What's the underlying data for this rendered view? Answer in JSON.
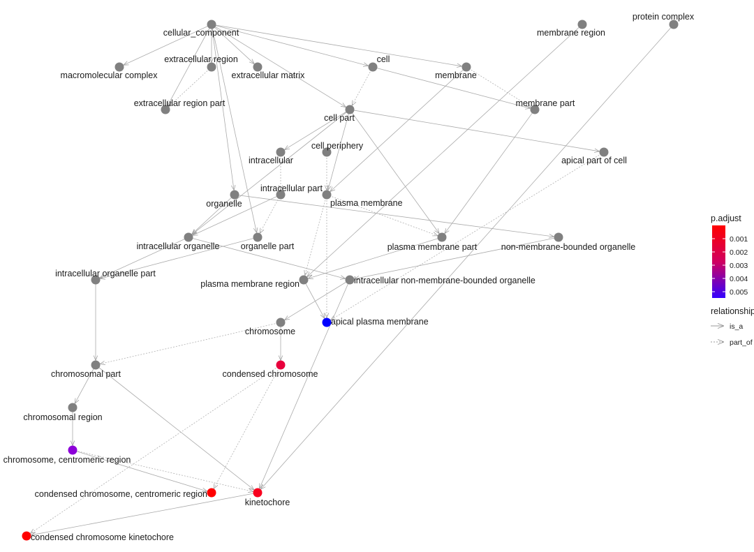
{
  "colors": {
    "default_node": "#808080",
    "edge": "#aaaaaa",
    "low": "#ff0000",
    "high": "#0000ff"
  },
  "nodes": [
    {
      "id": "cellular_component",
      "label": "cellular_component"
    },
    {
      "id": "macromolecular_complex",
      "label": "macromolecular complex"
    },
    {
      "id": "extracellular_region",
      "label": "extracellular region"
    },
    {
      "id": "extracellular_matrix",
      "label": "extracellular matrix"
    },
    {
      "id": "extracellular_region_part",
      "label": "extracellular region part"
    },
    {
      "id": "cell",
      "label": "cell"
    },
    {
      "id": "membrane",
      "label": "membrane"
    },
    {
      "id": "membrane_region",
      "label": "membrane region"
    },
    {
      "id": "protein_complex",
      "label": "protein complex"
    },
    {
      "id": "membrane_part",
      "label": "membrane part"
    },
    {
      "id": "cell_part",
      "label": "cell part"
    },
    {
      "id": "intracellular",
      "label": "intracellular"
    },
    {
      "id": "cell_periphery",
      "label": "cell periphery"
    },
    {
      "id": "apical_part_of_cell",
      "label": "apical part of cell"
    },
    {
      "id": "organelle",
      "label": "organelle"
    },
    {
      "id": "intracellular_part",
      "label": "intracellular part"
    },
    {
      "id": "plasma_membrane",
      "label": "plasma membrane"
    },
    {
      "id": "intracellular_organelle",
      "label": "intracellular organelle"
    },
    {
      "id": "organelle_part",
      "label": "organelle part"
    },
    {
      "id": "plasma_membrane_part",
      "label": "plasma membrane part"
    },
    {
      "id": "nmbo",
      "label": "non-membrane-bounded organelle"
    },
    {
      "id": "intracellular_organelle_part",
      "label": "intracellular organelle part"
    },
    {
      "id": "plasma_membrane_region",
      "label": "plasma membrane region"
    },
    {
      "id": "intracellular_nmbo",
      "label": "intracellular non-membrane-bounded organelle"
    },
    {
      "id": "chromosome",
      "label": "chromosome"
    },
    {
      "id": "apical_plasma_membrane",
      "label": "apical plasma membrane",
      "color": "#0000ff"
    },
    {
      "id": "condensed_chromosome",
      "label": "condensed chromosome",
      "color": "#e8003c"
    },
    {
      "id": "chromosomal_part",
      "label": "chromosomal part"
    },
    {
      "id": "chromosomal_region",
      "label": "chromosomal region"
    },
    {
      "id": "centromeric_region",
      "label": "chromosome, centromeric region",
      "color": "#8c00d8"
    },
    {
      "id": "condensed_centromeric_region",
      "label": "condensed chromosome, centromeric region",
      "color": "#ff0000"
    },
    {
      "id": "kinetochore",
      "label": "kinetochore",
      "color": "#f8001e"
    },
    {
      "id": "condensed_kinetochore",
      "label": "condensed chromosome kinetochore",
      "color": "#ff0000"
    }
  ],
  "edges": [
    [
      "cellular_component",
      "macromolecular_complex",
      "is_a"
    ],
    [
      "cellular_component",
      "extracellular_region",
      "is_a"
    ],
    [
      "cellular_component",
      "extracellular_matrix",
      "is_a"
    ],
    [
      "cellular_component",
      "extracellular_region_part",
      "is_a"
    ],
    [
      "cellular_component",
      "cell",
      "is_a"
    ],
    [
      "cellular_component",
      "membrane",
      "is_a"
    ],
    [
      "cellular_component",
      "cell_part",
      "is_a"
    ],
    [
      "cellular_component",
      "organelle",
      "is_a"
    ],
    [
      "cellular_component",
      "organelle_part",
      "is_a"
    ],
    [
      "extracellular_region",
      "extracellular_region_part",
      "part_of"
    ],
    [
      "cell",
      "cell_part",
      "part_of"
    ],
    [
      "cell",
      "membrane_part",
      "is_a"
    ],
    [
      "membrane",
      "membrane_part",
      "part_of"
    ],
    [
      "membrane",
      "plasma_membrane",
      "is_a"
    ],
    [
      "membrane_region",
      "plasma_membrane_region",
      "is_a"
    ],
    [
      "protein_complex",
      "kinetochore",
      "is_a"
    ],
    [
      "membrane_part",
      "plasma_membrane_part",
      "is_a"
    ],
    [
      "cell_part",
      "intracellular",
      "is_a"
    ],
    [
      "cell_part",
      "plasma_membrane",
      "is_a"
    ],
    [
      "cell_part",
      "plasma_membrane_part",
      "is_a"
    ],
    [
      "cell_part",
      "apical_part_of_cell",
      "is_a"
    ],
    [
      "cell_part",
      "intracellular_organelle",
      "is_a"
    ],
    [
      "intracellular",
      "intracellular_part",
      "part_of"
    ],
    [
      "cell_periphery",
      "plasma_membrane",
      "part_of"
    ],
    [
      "organelle",
      "intracellular_organelle",
      "is_a"
    ],
    [
      "organelle",
      "nmbo",
      "is_a"
    ],
    [
      "intracellular_part",
      "intracellular_organelle",
      "is_a"
    ],
    [
      "intracellular_part",
      "organelle_part",
      "part_of"
    ],
    [
      "plasma_membrane",
      "plasma_membrane_part",
      "part_of"
    ],
    [
      "plasma_membrane",
      "plasma_membrane_region",
      "part_of"
    ],
    [
      "plasma_membrane",
      "apical_plasma_membrane",
      "part_of"
    ],
    [
      "intracellular_organelle",
      "intracellular_organelle_part",
      "is_a"
    ],
    [
      "organelle_part",
      "intracellular_organelle_part",
      "is_a"
    ],
    [
      "intracellular_organelle",
      "intracellular_nmbo",
      "is_a"
    ],
    [
      "nmbo",
      "intracellular_nmbo",
      "is_a"
    ],
    [
      "plasma_membrane_part",
      "plasma_membrane_region",
      "is_a"
    ],
    [
      "apical_part_of_cell",
      "apical_plasma_membrane",
      "part_of"
    ],
    [
      "plasma_membrane_region",
      "apical_plasma_membrane",
      "is_a"
    ],
    [
      "intracellular_nmbo",
      "chromosome",
      "is_a"
    ],
    [
      "intracellular_nmbo",
      "kinetochore",
      "is_a"
    ],
    [
      "chromosome",
      "condensed_chromosome",
      "is_a"
    ],
    [
      "chromosome",
      "chromosomal_part",
      "part_of"
    ],
    [
      "intracellular_organelle_part",
      "chromosomal_part",
      "is_a"
    ],
    [
      "chromosomal_part",
      "chromosomal_region",
      "is_a"
    ],
    [
      "chromosomal_part",
      "kinetochore",
      "is_a"
    ],
    [
      "chromosomal_region",
      "centromeric_region",
      "is_a"
    ],
    [
      "centromeric_region",
      "kinetochore",
      "part_of"
    ],
    [
      "centromeric_region",
      "condensed_centromeric_region",
      "is_a"
    ],
    [
      "condensed_chromosome",
      "condensed_centromeric_region",
      "part_of"
    ],
    [
      "condensed_chromosome",
      "condensed_kinetochore",
      "part_of"
    ],
    [
      "kinetochore",
      "condensed_kinetochore",
      "is_a"
    ]
  ],
  "legend": {
    "color_title": "p.adjust",
    "ticks": [
      "0.001",
      "0.002",
      "0.003",
      "0.004",
      "0.005"
    ],
    "relationship_title": "relationship",
    "relationships": [
      "is_a",
      "part_of"
    ]
  }
}
